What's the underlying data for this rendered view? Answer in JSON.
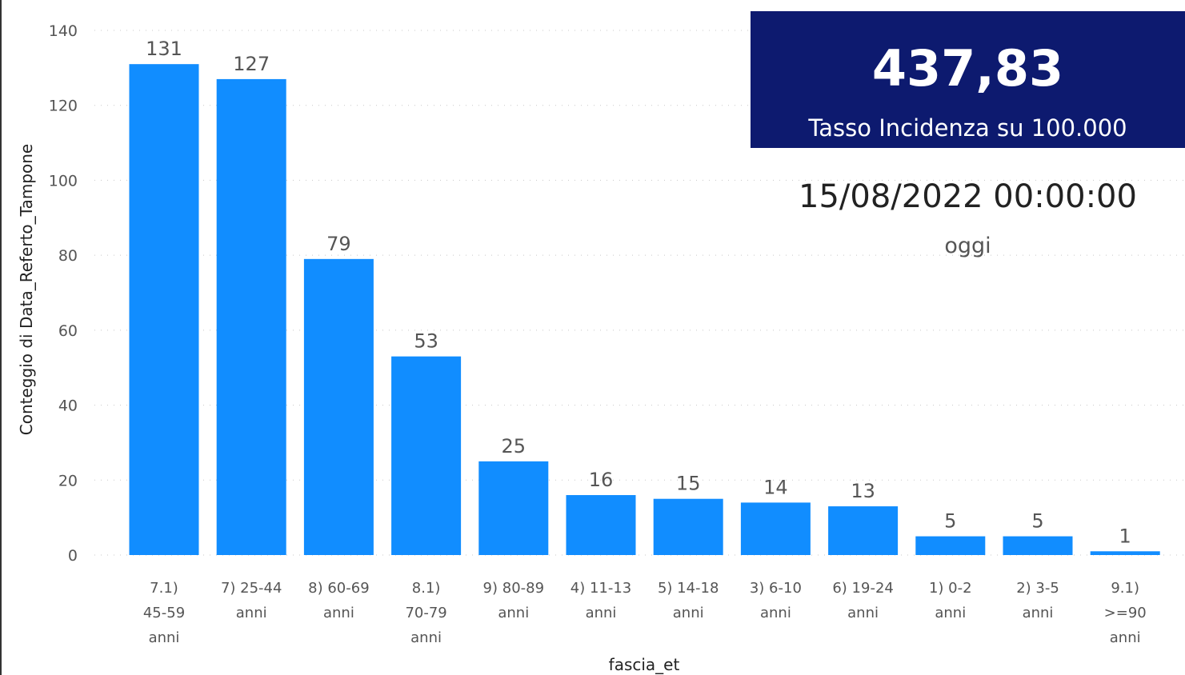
{
  "chart_data": {
    "type": "bar",
    "categories": [
      [
        "7.1)",
        "45-59",
        "anni"
      ],
      [
        "7) 25-44",
        "anni"
      ],
      [
        "8) 60-69",
        "anni"
      ],
      [
        "8.1)",
        "70-79",
        "anni"
      ],
      [
        "9) 80-89",
        "anni"
      ],
      [
        "4) 11-13",
        "anni"
      ],
      [
        "5) 14-18",
        "anni"
      ],
      [
        "3) 6-10",
        "anni"
      ],
      [
        "6) 19-24",
        "anni"
      ],
      [
        "1) 0-2",
        "anni"
      ],
      [
        "2) 3-5",
        "anni"
      ],
      [
        "9.1)",
        ">=90",
        "anni"
      ]
    ],
    "values": [
      131,
      127,
      79,
      53,
      25,
      16,
      15,
      14,
      13,
      5,
      5,
      1
    ],
    "xlabel": "fascia_et",
    "ylabel": "Conteggio di Data_Referto_Tampone",
    "ylim": [
      0,
      140
    ],
    "yticks": [
      0,
      20,
      40,
      60,
      80,
      100,
      120,
      140
    ],
    "grid": true,
    "bar_color": "#118dff"
  },
  "kpi": {
    "value": "437,83",
    "label": "Tasso Incidenza su 100.000",
    "background": "#0d1a6f"
  },
  "date_card": {
    "date": "15/08/2022 00:00:00",
    "caption": "oggi"
  }
}
